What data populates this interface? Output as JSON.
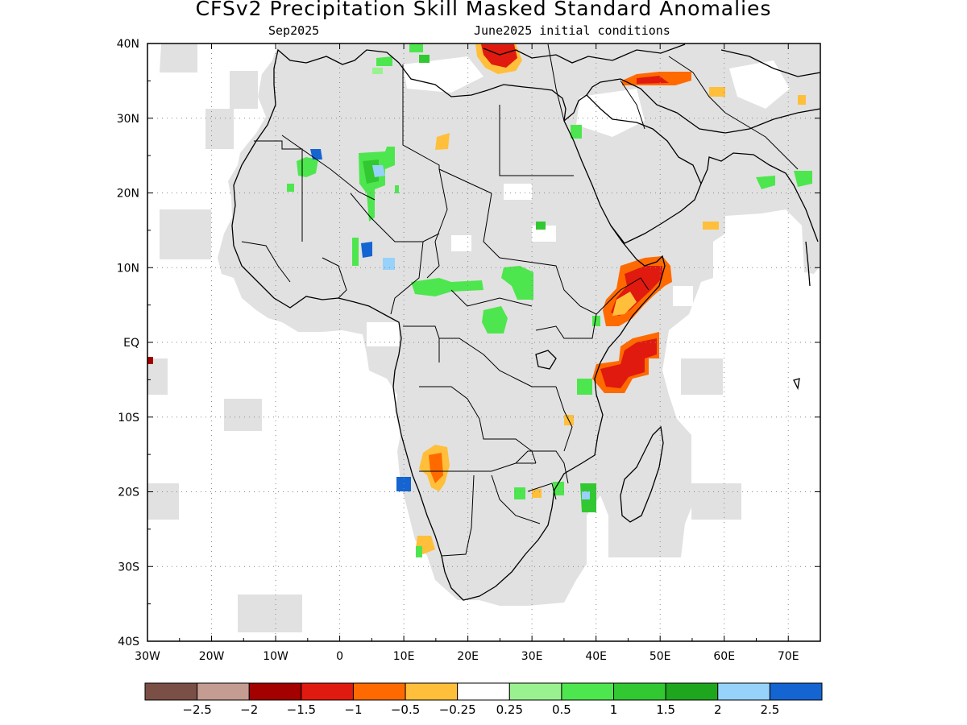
{
  "title": "CFSv2 Precipitation Skill Masked Standard Anomalies",
  "subtitle_left": "Sep2025",
  "subtitle_right": "June2025 initial conditions",
  "map": {
    "lon_range": [
      -30,
      75
    ],
    "lat_range": [
      -40,
      40
    ],
    "lon_ticks": [
      {
        "value": -30,
        "label": "30W"
      },
      {
        "value": -20,
        "label": "20W"
      },
      {
        "value": -10,
        "label": "10W"
      },
      {
        "value": 0,
        "label": "0"
      },
      {
        "value": 10,
        "label": "10E"
      },
      {
        "value": 20,
        "label": "20E"
      },
      {
        "value": 30,
        "label": "30E"
      },
      {
        "value": 40,
        "label": "40E"
      },
      {
        "value": 50,
        "label": "50E"
      },
      {
        "value": 60,
        "label": "60E"
      },
      {
        "value": 70,
        "label": "70E"
      }
    ],
    "lat_ticks": [
      {
        "value": 40,
        "label": "40N"
      },
      {
        "value": 30,
        "label": "30N"
      },
      {
        "value": 20,
        "label": "20N"
      },
      {
        "value": 10,
        "label": "10N"
      },
      {
        "value": 0,
        "label": "EQ"
      },
      {
        "value": -10,
        "label": "10S"
      },
      {
        "value": -20,
        "label": "20S"
      },
      {
        "value": -30,
        "label": "30S"
      },
      {
        "value": -40,
        "label": "40S"
      }
    ],
    "skill_mask_color": "#e1e1e1",
    "coast_color": "#000000"
  },
  "colorbar": {
    "colors": [
      "#7a4f45",
      "#c59c91",
      "#a30000",
      "#e01a0f",
      "#ff6a00",
      "#ffbf3a",
      "#ffffff",
      "#99f28f",
      "#4ee64e",
      "#32c832",
      "#1ea61e",
      "#96d2fa",
      "#1464d2"
    ],
    "labels": [
      "−2.5",
      "−2",
      "−1.5",
      "−1",
      "−0.5",
      "−0.25",
      "0.25",
      "0.5",
      "1",
      "1.5",
      "2",
      "2.5"
    ]
  }
}
